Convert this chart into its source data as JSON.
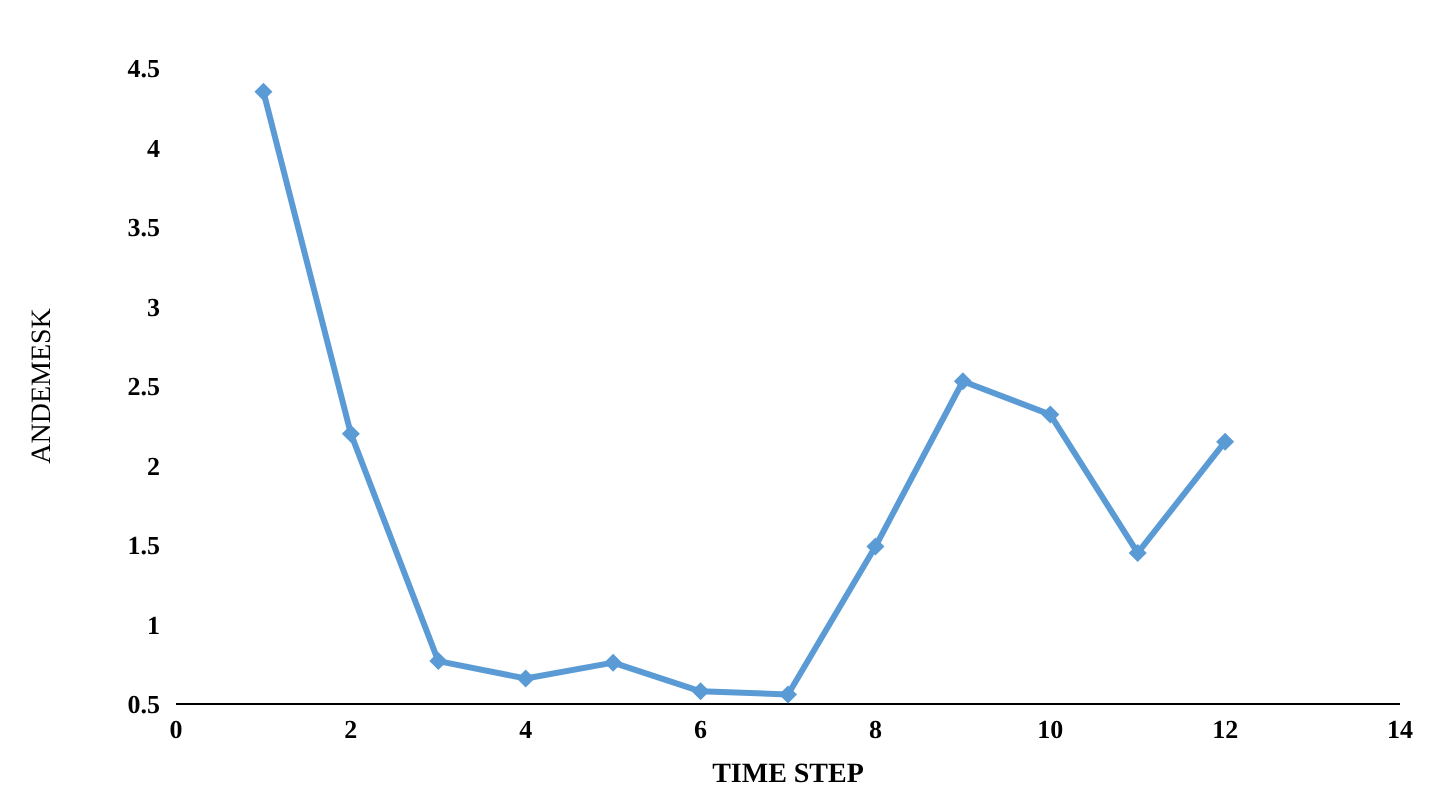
{
  "chart_data": {
    "type": "line",
    "xlabel": "TIME STEP",
    "ylabel": "ANDEMESK",
    "x": [
      1,
      2,
      3,
      4,
      5,
      6,
      7,
      8,
      9,
      10,
      11,
      12
    ],
    "series": [
      {
        "color": "#5b9bd5",
        "values": [
          4.35,
          2.2,
          0.77,
          0.66,
          0.76,
          0.58,
          0.56,
          1.49,
          2.53,
          2.32,
          1.45,
          2.15
        ]
      }
    ],
    "xlim": [
      0,
      14
    ],
    "xticks": [
      0,
      2,
      4,
      6,
      8,
      10,
      12,
      14
    ],
    "ylim": [
      0.5,
      4.5
    ],
    "yticks": [
      0.5,
      1,
      1.5,
      2,
      2.5,
      3,
      3.5,
      4,
      4.5
    ],
    "grid": false,
    "legend": false,
    "marker": "diamond",
    "line_style": "solid"
  }
}
